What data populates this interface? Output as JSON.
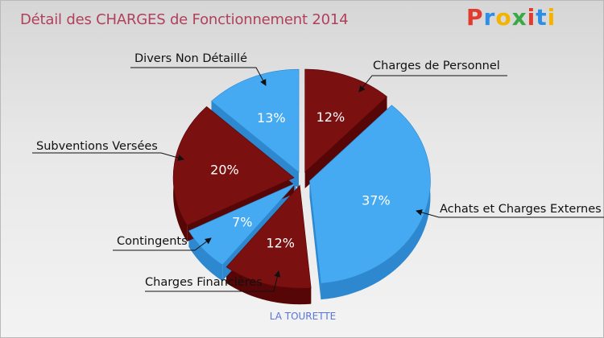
{
  "header": {
    "title": "Détail des CHARGES de Fonctionnement 2014",
    "logo": "Proxiti"
  },
  "footer": {
    "commune": "LA TOURETTE"
  },
  "colors": {
    "blue": "#45aaf2",
    "red": "#7a1010",
    "title": "#b0405c",
    "footer": "#5a76d8"
  },
  "chart_data": {
    "type": "pie",
    "title": "Détail des CHARGES de Fonctionnement 2014",
    "slices": [
      {
        "label": "Charges de Personnel",
        "value": 12,
        "pct_label": "12%",
        "color": "#7a1010"
      },
      {
        "label": "Achats et Charges Externes",
        "value": 37,
        "pct_label": "37%",
        "color": "#45aaf2"
      },
      {
        "label": "Charges Financières",
        "value": 12,
        "pct_label": "12%",
        "color": "#7a1010"
      },
      {
        "label": "Contingents",
        "value": 7,
        "pct_label": "7%",
        "color": "#45aaf2"
      },
      {
        "label": "Subventions Versées",
        "value": 20,
        "pct_label": "20%",
        "color": "#7a1010"
      },
      {
        "label": "Divers Non Détaillé",
        "value": 13,
        "pct_label": "13%",
        "color": "#45aaf2"
      }
    ]
  }
}
